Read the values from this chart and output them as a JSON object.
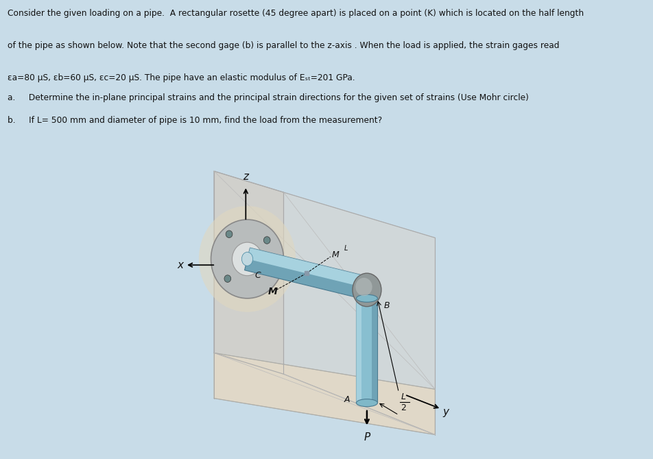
{
  "bg_color": "#c8dce8",
  "text_bg": "#ffffff",
  "diagram_bg": "#c8dce8",
  "title_line1": "Consider the given loading on a pipe.  A rectangular rosette (45 degree apart) is placed on a point (K) which is located on the half length",
  "title_line2": "of the pipe as shown below. Note that the second gage (b) is parallel to the z-axis . When the load is applied, the strain gages read",
  "title_line3_pre": "ε",
  "title_line3": "a=80 μS, εb=60 μS, εc=20 μS. The pipe have an elastic modulus of E",
  "title_line3_sub": "st",
  "title_line3_post": "=201 GPa.",
  "qa_label": "a.",
  "qa_text": "     Determine the in-plane principal strains and the principal strain directions for the given set of strains (Use Mohr circle)",
  "qb_label": "b.",
  "qb_text": "     If L= 500 mm and diameter of pipe is 10 mm, find the load from the measurement?",
  "wall_color": "#d0d0cc",
  "wall_edge": "#aaaaaa",
  "floor_color": "#e0d8c8",
  "floor_edge": "#bbbbaa",
  "flange_color": "#b8bcbc",
  "flange_edge": "#888888",
  "hole_color": "#d8dcdc",
  "bolt_color": "#6a8888",
  "pipe_main": "#88bfd0",
  "pipe_light": "#b8dde8",
  "pipe_dark": "#4a7a90",
  "elbow_color": "#909898",
  "elbow_edge": "#666666",
  "pipe_edge": "#4a7a90",
  "label_color": "#111111",
  "glow_color": "#e0d8c0"
}
